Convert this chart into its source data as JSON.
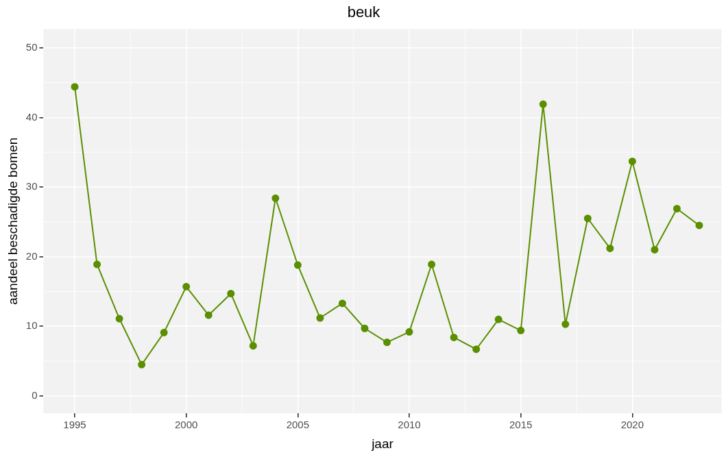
{
  "chart_data": {
    "type": "line",
    "title": "beuk",
    "xlabel": "jaar",
    "ylabel": "aandeel beschadigde bomen",
    "x": [
      1995,
      1996,
      1997,
      1998,
      1999,
      2000,
      2001,
      2002,
      2003,
      2004,
      2005,
      2006,
      2007,
      2008,
      2009,
      2010,
      2011,
      2012,
      2013,
      2014,
      2015,
      2016,
      2017,
      2018,
      2019,
      2020,
      2021,
      2022,
      2023
    ],
    "series": [
      {
        "color": "#5a8f00",
        "values": [
          44.4,
          18.9,
          11.1,
          4.5,
          9.1,
          15.7,
          11.6,
          14.7,
          7.2,
          28.4,
          18.8,
          11.2,
          13.3,
          9.7,
          7.7,
          9.2,
          18.9,
          8.4,
          6.7,
          11.0,
          9.4,
          41.9,
          10.3,
          25.5,
          21.2,
          33.7,
          21.0,
          26.9,
          24.5
        ]
      }
    ],
    "xlim": [
      1993.6,
      2024
    ],
    "xticks": [
      1995,
      2000,
      2005,
      2010,
      2015,
      2020
    ],
    "ylim": [
      -2.5,
      52.7
    ],
    "yticks": [
      0,
      10,
      20,
      30,
      40,
      50
    ],
    "grid": true,
    "legend": false,
    "marker": "circle",
    "line_style": "solid"
  }
}
